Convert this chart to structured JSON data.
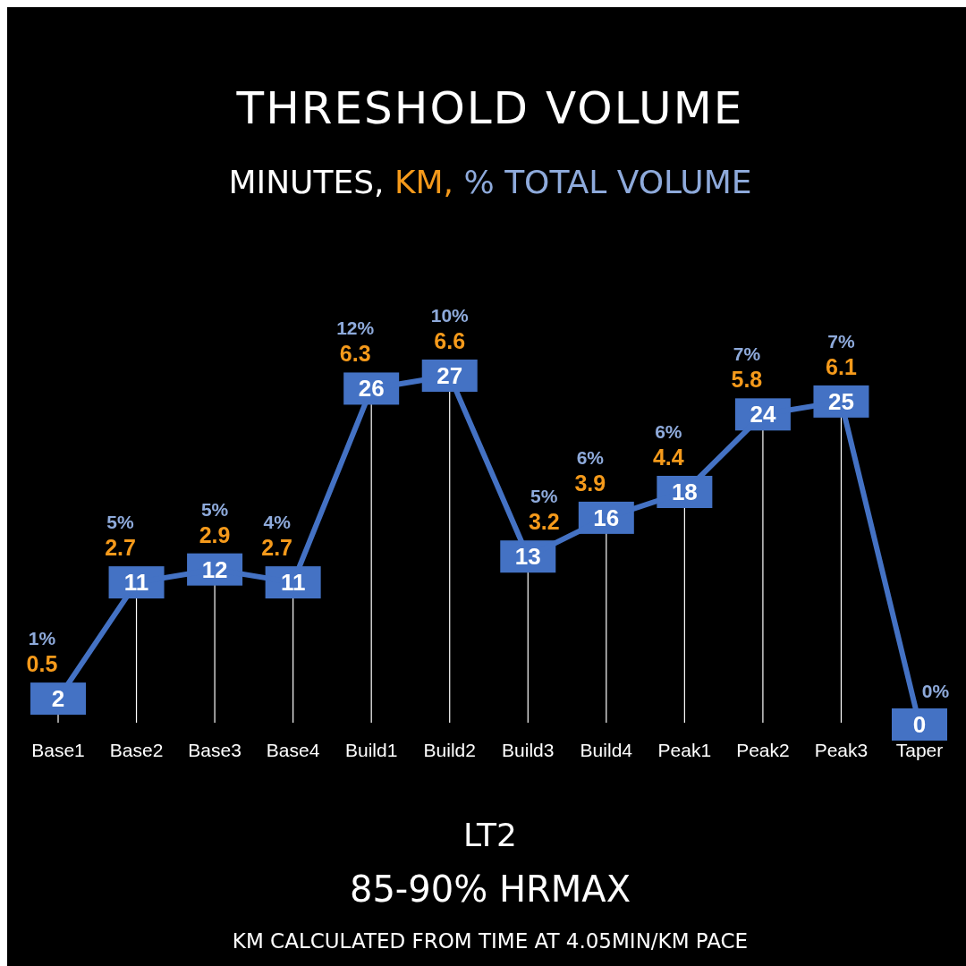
{
  "chart_data": {
    "type": "line",
    "title": "THRESHOLD VOLUME",
    "subtitle": "MINUTES, KM, % TOTAL VOLUME",
    "categories": [
      "Base1",
      "Base2",
      "Base3",
      "Base4",
      "Build1",
      "Build2",
      "Build3",
      "Build4",
      "Peak1",
      "Peak2",
      "Peak3",
      "Taper"
    ],
    "series": [
      {
        "color": "#4472c4",
        "values": [
          2,
          11,
          12,
          11,
          26,
          27,
          13,
          16,
          18,
          24,
          25,
          0
        ]
      }
    ],
    "data_labels": true,
    "grid": "x",
    "annotations": [
      {
        "text": "1%",
        "x": "Base1",
        "y": 2
      },
      {
        "text": "0.5",
        "x": "Base1",
        "y": 2
      },
      {
        "text": "5%",
        "x": "Base2",
        "y": 11
      },
      {
        "text": "2.7",
        "x": "Base2",
        "y": 11
      },
      {
        "text": "5%",
        "x": "Base3",
        "y": 12
      },
      {
        "text": "2.9",
        "x": "Base3",
        "y": 12
      },
      {
        "text": "4%",
        "x": "Base4",
        "y": 11
      },
      {
        "text": "2.7",
        "x": "Base4",
        "y": 11
      },
      {
        "text": "12%",
        "x": "Build1",
        "y": 26
      },
      {
        "text": "6.3",
        "x": "Build1",
        "y": 26
      },
      {
        "text": "10%",
        "x": "Build2",
        "y": 27
      },
      {
        "text": "6.6",
        "x": "Build2",
        "y": 27
      },
      {
        "text": "5%",
        "x": "Build3",
        "y": 13
      },
      {
        "text": "3.2",
        "x": "Build3",
        "y": 13
      },
      {
        "text": "6%",
        "x": "Build4",
        "y": 16
      },
      {
        "text": "3.9",
        "x": "Build4",
        "y": 16
      },
      {
        "text": "6%",
        "x": "Peak1",
        "y": 18
      },
      {
        "text": "4.4",
        "x": "Peak1",
        "y": 18
      },
      {
        "text": "7%",
        "x": "Peak2",
        "y": 24
      },
      {
        "text": "5.8",
        "x": "Peak2",
        "y": 24
      },
      {
        "text": "7%",
        "x": "Peak3",
        "y": 25
      },
      {
        "text": "6.1",
        "x": "Peak3",
        "y": 25
      },
      {
        "text": "0%",
        "x": "Taper",
        "y": 0
      },
      "LT2",
      "85-90% HRMAX",
      "KM CALCULATED FROM TIME AT 4.05MIN/KM PACE"
    ]
  }
}
